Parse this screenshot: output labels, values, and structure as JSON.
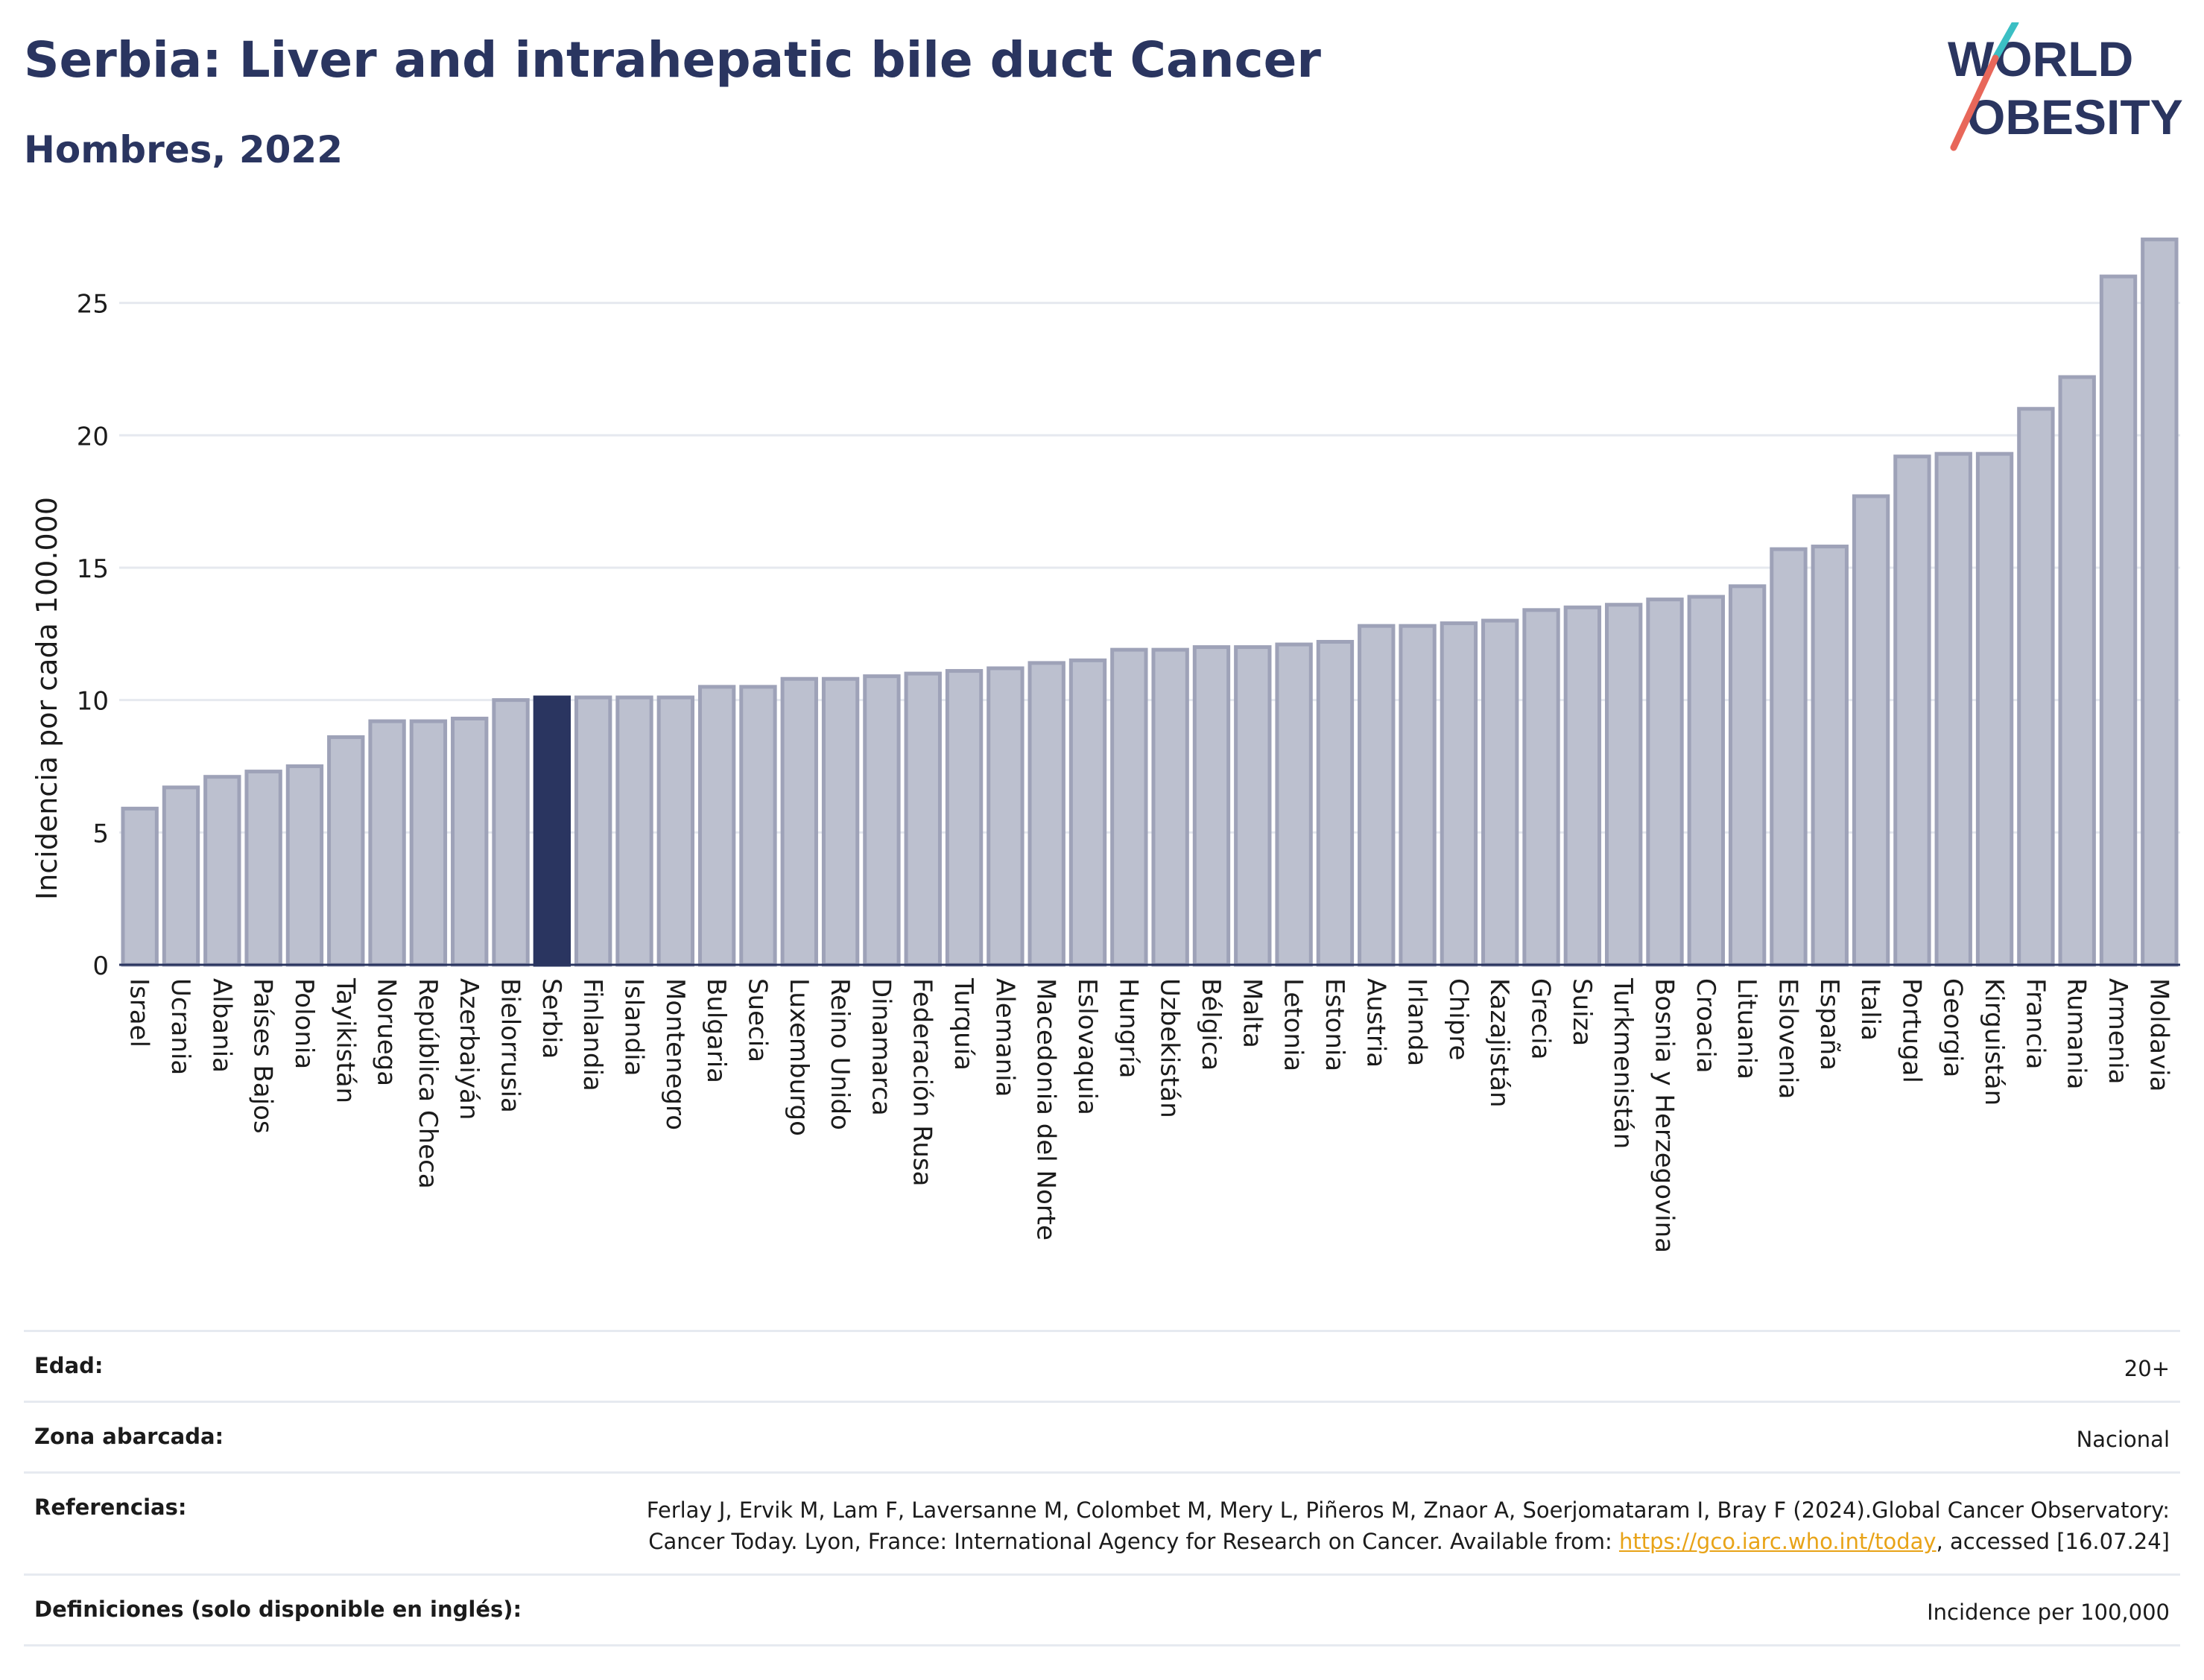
{
  "title": "Serbia: Liver and intrahepatic bile duct Cancer",
  "subtitle": "Hombres, 2022",
  "logo": {
    "line1": "WORLD",
    "line2": "OBESITY"
  },
  "colors": {
    "bar": "#bcc0cf",
    "bar_stroke": "#9ea2b8",
    "highlight": "#2a3560",
    "title": "#2a3560",
    "link": "#e8a317"
  },
  "chart_data": {
    "type": "bar",
    "ylabel": "Incidencia por cada 100.000",
    "xlabel": "",
    "ylim": [
      0,
      28
    ],
    "yticks": [
      0,
      5,
      10,
      15,
      20,
      25
    ],
    "grid": true,
    "highlight": "Serbia",
    "categories": [
      "Israel",
      "Ucrania",
      "Albania",
      "Países Bajos",
      "Polonia",
      "Tayikistán",
      "Noruega",
      "República Checa",
      "Azerbaiyán",
      "Bielorrusia",
      "Serbia",
      "Finlandia",
      "Islandia",
      "Montenegro",
      "Bulgaria",
      "Suecia",
      "Luxemburgo",
      "Reino Unido",
      "Dinamarca",
      "Federación Rusa",
      "Turquía",
      "Alemania",
      "Macedonia del Norte",
      "Eslovaquia",
      "Hungría",
      "Uzbekistán",
      "Bélgica",
      "Malta",
      "Letonia",
      "Estonia",
      "Austria",
      "Irlanda",
      "Chipre",
      "Kazajistán",
      "Grecia",
      "Suiza",
      "Turkmenistán",
      "Bosnia y Herzegovina",
      "Croacia",
      "Lituania",
      "Eslovenia",
      "España",
      "Italia",
      "Portugal",
      "Georgia",
      "Kirguistán",
      "Francia",
      "Rumania",
      "Armenia",
      "Moldavia"
    ],
    "values": [
      5.9,
      6.7,
      7.1,
      7.3,
      7.5,
      8.6,
      9.2,
      9.2,
      9.3,
      10.0,
      10.1,
      10.1,
      10.1,
      10.1,
      10.5,
      10.5,
      10.8,
      10.8,
      10.9,
      11.0,
      11.1,
      11.2,
      11.4,
      11.5,
      11.9,
      11.9,
      12.0,
      12.0,
      12.1,
      12.2,
      12.8,
      12.8,
      12.9,
      13.0,
      13.4,
      13.5,
      13.6,
      13.8,
      13.9,
      14.3,
      15.7,
      15.8,
      17.7,
      19.2,
      19.3,
      19.3,
      21.0,
      22.2,
      26.0,
      27.4
    ]
  },
  "info": {
    "age_label": "Edad:",
    "age_value": "20+",
    "zone_label": "Zona abarcada:",
    "zone_value": "Nacional",
    "ref_label": "Referencias:",
    "ref_text_before": "Ferlay J, Ervik M, Lam F, Laversanne M, Colombet M, Mery L, Piñeros M, Znaor A, Soerjomataram I, Bray F (2024).Global Cancer Observatory: Cancer Today. Lyon, France: International Agency for Research on Cancer. Available from: ",
    "ref_link": "https://gco.iarc.who.int/today",
    "ref_text_after": ", accessed [16.07.24]",
    "def_label": "Definiciones (solo disponible en inglés):",
    "def_value": "Incidence per 100,000"
  }
}
